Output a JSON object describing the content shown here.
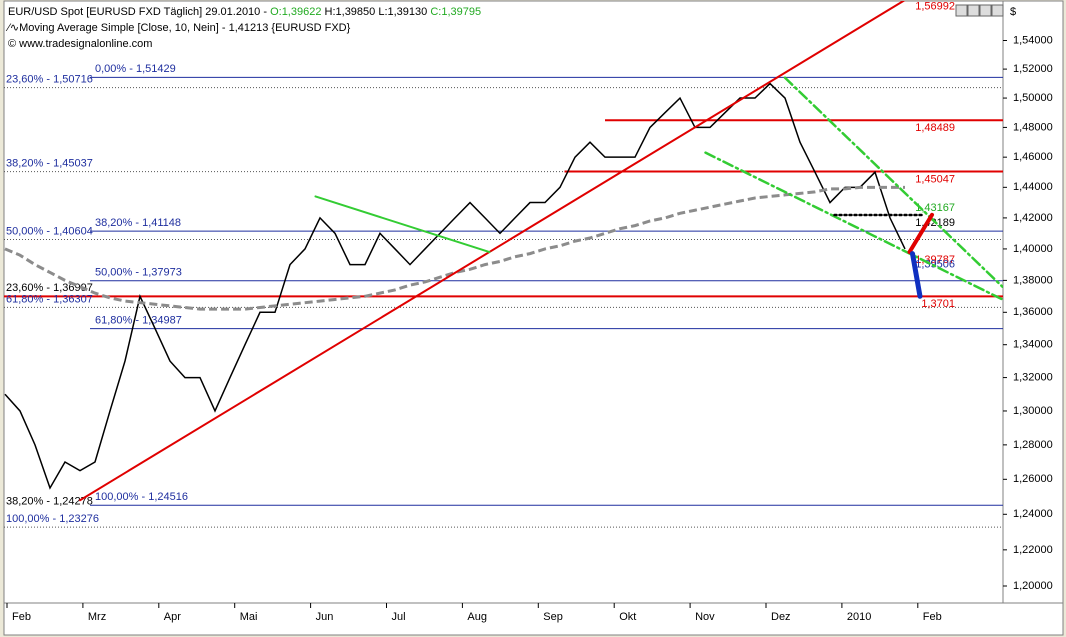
{
  "chart_data": {
    "type": "line",
    "header": {
      "symbol": "EUR/USD Spot [EURUSD FXD  Täglich] 29.01.2010 -",
      "open": "O:1,39622",
      "high_low": "H:1,39850 L:1,39130",
      "close": "C:1,39795",
      "indicator": "Moving Average Simple [Close, 10, Nein]",
      "indicator_value": "1,41213",
      "indicator_source": "{EURUSD FXD}",
      "copyright": "© www.tradesignalonline.com",
      "currency": "$"
    },
    "months": [
      "Feb",
      "Mrz",
      "Apr",
      "Mai",
      "Jun",
      "Jul",
      "Aug",
      "Sep",
      "Okt",
      "Nov",
      "Dez",
      "2010",
      "Feb"
    ],
    "log_scale": true,
    "ylim": [
      1.1907,
      1.5688
    ],
    "yticks": [
      {
        "value": 1.2,
        "label": "1,20000"
      },
      {
        "value": 1.22,
        "label": "1,22000"
      },
      {
        "value": 1.24,
        "label": "1,24000"
      },
      {
        "value": 1.26,
        "label": "1,26000"
      },
      {
        "value": 1.28,
        "label": "1,28000"
      },
      {
        "value": 1.3,
        "label": "1,30000"
      },
      {
        "value": 1.32,
        "label": "1,32000"
      },
      {
        "value": 1.34,
        "label": "1,34000"
      },
      {
        "value": 1.36,
        "label": "1,36000"
      },
      {
        "value": 1.38,
        "label": "1,38000"
      },
      {
        "value": 1.4,
        "label": "1,40000"
      },
      {
        "value": 1.42,
        "label": "1,42000"
      },
      {
        "value": 1.44,
        "label": "1,44000"
      },
      {
        "value": 1.46,
        "label": "1,46000"
      },
      {
        "value": 1.48,
        "label": "1,48000"
      },
      {
        "value": 1.5,
        "label": "1,50000"
      },
      {
        "value": 1.52,
        "label": "1,52000"
      },
      {
        "value": 1.54,
        "label": "1,54000"
      }
    ],
    "series": [
      {
        "color": "#000000",
        "width": 1.5,
        "dashed": false,
        "values": [
          1.31,
          1.3,
          1.28,
          1.255,
          1.27,
          1.265,
          1.27,
          1.3,
          1.33,
          1.37,
          1.35,
          1.33,
          1.32,
          1.32,
          1.3,
          1.32,
          1.34,
          1.36,
          1.36,
          1.39,
          1.4,
          1.42,
          1.41,
          1.39,
          1.39,
          1.41,
          1.4,
          1.39,
          1.4,
          1.41,
          1.42,
          1.43,
          1.42,
          1.41,
          1.42,
          1.43,
          1.43,
          1.44,
          1.46,
          1.47,
          1.46,
          1.46,
          1.46,
          1.48,
          1.49,
          1.5,
          1.48,
          1.48,
          1.49,
          1.5,
          1.5,
          1.51,
          1.5,
          1.47,
          1.45,
          1.43,
          1.44,
          1.44,
          1.45,
          1.42,
          1.4
        ]
      },
      {
        "color": "#8c8c8c",
        "width": 3,
        "dashed": true,
        "values": [
          1.4,
          1.396,
          1.39,
          1.385,
          1.38,
          1.376,
          1.372,
          1.369,
          1.367,
          1.366,
          1.365,
          1.364,
          1.363,
          1.362,
          1.362,
          1.362,
          1.362,
          1.363,
          1.364,
          1.365,
          1.366,
          1.367,
          1.368,
          1.369,
          1.37,
          1.372,
          1.374,
          1.377,
          1.379,
          1.382,
          1.385,
          1.387,
          1.39,
          1.392,
          1.395,
          1.397,
          1.4,
          1.402,
          1.405,
          1.407,
          1.41,
          1.413,
          1.415,
          1.418,
          1.42,
          1.423,
          1.425,
          1.427,
          1.429,
          1.431,
          1.433,
          1.434,
          1.435,
          1.436,
          1.437,
          1.439,
          1.439,
          1.44,
          1.44,
          1.44,
          1.44
        ]
      }
    ],
    "trendlines": [
      {
        "color": "#e00000",
        "width": 2,
        "dash": "none",
        "x": [
          5,
          60
        ],
        "y": [
          1.248,
          1.5688
        ]
      },
      {
        "color": "#33cc33",
        "width": 2,
        "dash": "none",
        "x": [
          20.7,
          32.3
        ],
        "y": [
          1.434,
          1.398
        ]
      },
      {
        "color": "#33cc33",
        "width": 2.5,
        "dash": "dashdot",
        "x": [
          52,
          66.5
        ],
        "y": [
          1.514,
          1.376
        ]
      },
      {
        "color": "#33cc33",
        "width": 2.5,
        "dash": "dashdot",
        "x": [
          46.7,
          66.5
        ],
        "y": [
          1.463,
          1.368
        ]
      },
      {
        "color": "#000000",
        "width": 2.5,
        "dash": "dot",
        "x": [
          55.3,
          61.3
        ],
        "y": [
          1.4219,
          1.4219
        ]
      },
      {
        "color": "#e00000",
        "width": 4,
        "dash": "none",
        "x": [
          60.3,
          61.8
        ],
        "y": [
          1.398,
          1.422
        ]
      },
      {
        "color": "#1030c0",
        "width": 5,
        "dash": "none",
        "x": [
          60.5,
          61
        ],
        "y": [
          1.397,
          1.37
        ]
      }
    ],
    "levels": [
      {
        "value": 1.51429,
        "label": "0,00% - 1,51429",
        "color": "#1f2f9f",
        "style": "solid",
        "label_at": "inner"
      },
      {
        "value": 1.50716,
        "label": "23,60% - 1,50716",
        "color": "#1f2f9f",
        "style": "dotted",
        "label_at": "left"
      },
      {
        "value": 1.45037,
        "label": "38,20% - 1,45037",
        "color": "#1f2f9f",
        "style": "dotted",
        "label_at": "left"
      },
      {
        "value": 1.41148,
        "label": "38,20% - 1,41148",
        "color": "#1f2f9f",
        "style": "solid",
        "label_at": "inner"
      },
      {
        "value": 1.40604,
        "label": "50,00% - 1,40604",
        "color": "#1f2f9f",
        "style": "dotted",
        "label_at": "left"
      },
      {
        "value": 1.37973,
        "label": "50,00% - 1,37973",
        "color": "#1f2f9f",
        "style": "solid",
        "label_at": "inner"
      },
      {
        "value": 1.36997,
        "label": "23,60% - 1,36997",
        "color": "#000000",
        "style": "red",
        "label_at": "left"
      },
      {
        "value": 1.36307,
        "label": "61,80% - 1,36307",
        "color": "#1f2f9f",
        "style": "dotted",
        "label_at": "left"
      },
      {
        "value": 1.34987,
        "label": "61,80% - 1,34987",
        "color": "#1f2f9f",
        "style": "solid",
        "label_at": "inner"
      },
      {
        "value": 1.24516,
        "label": "100,00% - 1,24516",
        "color": "#1f2f9f",
        "style": "solid",
        "label_at": "inner"
      },
      {
        "value": 1.24278,
        "label": "38,20% - 1,24278",
        "color": "#000000",
        "style": "none",
        "label_at": "left"
      },
      {
        "value": 1.23276,
        "label": "100,00% - 1,23276",
        "color": "#1f2f9f",
        "style": "dotted",
        "label_at": "left"
      }
    ],
    "right_levels": [
      {
        "value": 1.56992,
        "label": "1,56992",
        "color": "#e00000",
        "line": false
      },
      {
        "value": 1.48489,
        "label": "1,48489",
        "color": "#e00000",
        "line": true,
        "from": 40
      },
      {
        "value": 1.45047,
        "label": "1,45047",
        "color": "#e00000",
        "line": true,
        "from": 37.3
      },
      {
        "value": 1.43167,
        "label": "1,43167",
        "color": "#22aa22",
        "line": false
      },
      {
        "value": 1.42189,
        "label": "1,42189",
        "color": "#000000",
        "line": false
      },
      {
        "value": 1.39787,
        "label": "1,39787",
        "color": "#e00000",
        "line": false
      },
      {
        "value": 1.39506,
        "label": "1,39506",
        "color": "#1f2f9f",
        "line": false
      },
      {
        "value": 1.3701,
        "label": "1,3701",
        "color": "#e00000",
        "line": false
      }
    ]
  }
}
